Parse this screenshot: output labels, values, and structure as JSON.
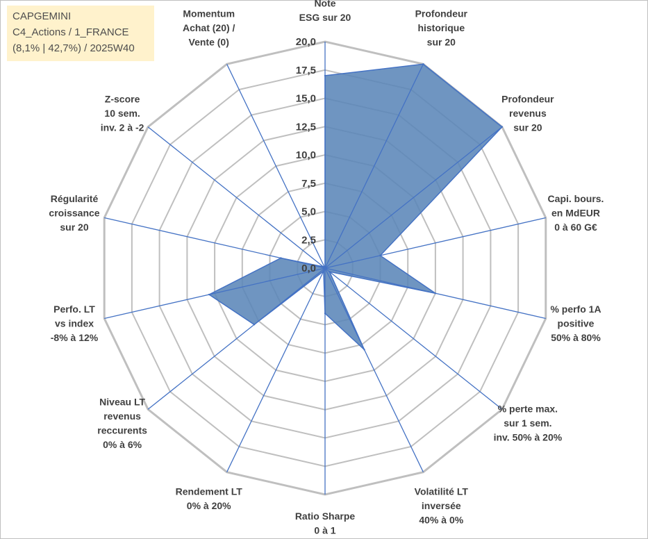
{
  "header": {
    "company": "CAPGEMINI",
    "category": "C4_Actions / 1_FRANCE",
    "stats": "(8,1% | 42,7%) / 2025W40"
  },
  "colors": {
    "fill": "#5b86b8",
    "stroke": "#4472c4",
    "grid": "#bfbfbf",
    "spoke": "#4472c4"
  },
  "chart_data": {
    "type": "radar",
    "rmin": 0,
    "rmax": 20,
    "ticks": [
      "0,0",
      "2,5",
      "5,0",
      "7,5",
      "10,0",
      "12,5",
      "15,0",
      "17,5",
      "20,0"
    ],
    "axes": [
      {
        "label": [
          "Note",
          "ESG sur 20"
        ],
        "value": 17
      },
      {
        "label": [
          "Profondeur",
          "historique",
          "sur 20"
        ],
        "value": 20
      },
      {
        "label": [
          "Profondeur",
          "revenus",
          "sur 20"
        ],
        "value": 20
      },
      {
        "label": [
          "Capi. bours.",
          "en MdEUR",
          "0 à 60 G€"
        ],
        "value": 5
      },
      {
        "label": [
          "% perfo 1A",
          "positive",
          "50% à 80%"
        ],
        "value": 10
      },
      {
        "label": [
          "% perte max.",
          "sur 1 sem.",
          "inv. 50% à 20%"
        ],
        "value": 0.5
      },
      {
        "label": [
          "Volatilité LT",
          "inversée",
          "40% à 0%"
        ],
        "value": 8
      },
      {
        "label": [
          "Ratio Sharpe",
          "0 à 1"
        ],
        "value": 4
      },
      {
        "label": [
          "Rendement LT",
          "0% à 20%"
        ],
        "value": 0.3
      },
      {
        "label": [
          "Niveau LT",
          "revenus",
          "reccurents",
          "0% à 6%"
        ],
        "value": 8
      },
      {
        "label": [
          "Perfo. LT",
          "vs index",
          "-8% à 12%"
        ],
        "value": 10.5
      },
      {
        "label": [
          "Régularité",
          "croissance",
          "sur 20"
        ],
        "value": 4
      },
      {
        "label": [
          "Z-score",
          "10 sem.",
          "inv. 2 à -2"
        ],
        "value": 0.2
      },
      {
        "label": [
          "Momentum",
          "Achat (20) /",
          "Vente (0)"
        ],
        "value": 0
      }
    ]
  }
}
